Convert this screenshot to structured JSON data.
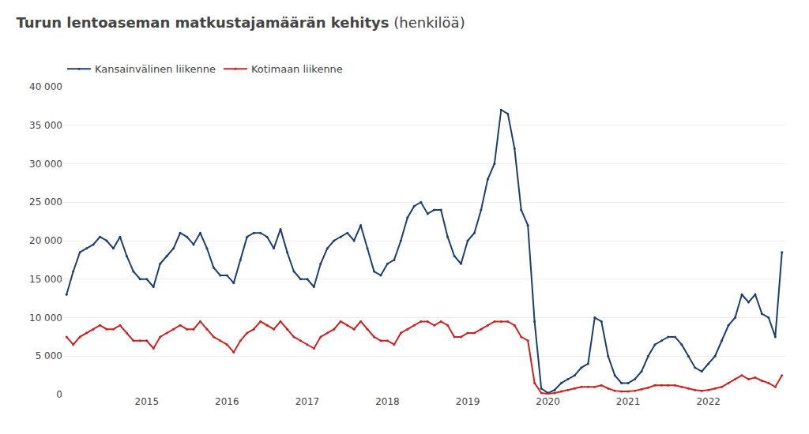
{
  "chart_data": {
    "type": "line",
    "title": "Turun lentoaseman matkustajamäärän kehitys",
    "subtitle": "(henkilöä)",
    "categories": [
      null,
      null,
      null,
      null,
      null,
      null,
      null,
      null,
      null,
      null,
      null,
      null,
      "2015",
      null,
      null,
      null,
      null,
      null,
      null,
      null,
      null,
      null,
      null,
      null,
      "2016",
      null,
      null,
      null,
      null,
      null,
      null,
      null,
      null,
      null,
      null,
      null,
      "2017",
      null,
      null,
      null,
      null,
      null,
      null,
      null,
      null,
      null,
      null,
      null,
      "2018",
      null,
      null,
      null,
      null,
      null,
      null,
      null,
      null,
      null,
      null,
      null,
      "2019",
      null,
      null,
      null,
      null,
      null,
      null,
      null,
      null,
      null,
      null,
      null,
      "2020",
      null,
      null,
      null,
      null,
      null,
      null,
      null,
      null,
      null,
      null,
      null,
      "2021",
      null,
      null,
      null,
      null,
      null,
      null,
      null,
      null,
      null,
      null,
      null,
      "2022",
      null,
      null,
      null,
      null,
      null,
      null,
      null,
      null,
      null,
      null,
      null
    ],
    "series": [
      {
        "name": "Kansainvälinen liikenne",
        "color": "#1c3f6e",
        "marker": "circle",
        "values": [
          13000,
          16000,
          18500,
          19000,
          19500,
          20500,
          20000,
          19000,
          20500,
          18000,
          16000,
          15000,
          15000,
          14000,
          17000,
          18000,
          19000,
          21000,
          20500,
          19500,
          21000,
          19000,
          16500,
          15500,
          15500,
          14500,
          17500,
          20500,
          21000,
          21000,
          20500,
          19000,
          21500,
          18500,
          16000,
          15000,
          15000,
          14000,
          17000,
          19000,
          20000,
          20500,
          21000,
          20000,
          22000,
          19000,
          16000,
          15500,
          17000,
          17500,
          20000,
          23000,
          24500,
          25000,
          23500,
          24000,
          24000,
          20500,
          18000,
          17000,
          20000,
          21000,
          24000,
          28000,
          30000,
          37000,
          36500,
          32000,
          24000,
          22000,
          9500,
          800,
          200,
          600,
          1500,
          2000,
          2500,
          3500,
          4000,
          10000,
          9500,
          5000,
          2500,
          1500,
          1500,
          2000,
          3000,
          5000,
          6500,
          7000,
          7500,
          7500,
          6500,
          5000,
          3500,
          3000,
          4000,
          5000,
          7000,
          9000,
          10000,
          13000,
          12000,
          13000,
          10500,
          10000,
          7500,
          18500
        ]
      },
      {
        "name": "Kotimaan liikenne",
        "color": "#cc2222",
        "marker": "circle",
        "values": [
          7500,
          6500,
          7500,
          8000,
          8500,
          9000,
          8500,
          8500,
          9000,
          8000,
          7000,
          7000,
          7000,
          6000,
          7500,
          8000,
          8500,
          9000,
          8500,
          8500,
          9500,
          8500,
          7500,
          7000,
          6500,
          5500,
          7000,
          8000,
          8500,
          9500,
          9000,
          8500,
          9500,
          8500,
          7500,
          7000,
          6500,
          6000,
          7500,
          8000,
          8500,
          9500,
          9000,
          8500,
          9500,
          8500,
          7500,
          7000,
          7000,
          6500,
          8000,
          8500,
          9000,
          9500,
          9500,
          9000,
          9500,
          9000,
          7500,
          7500,
          8000,
          8000,
          8500,
          9000,
          9500,
          9500,
          9500,
          9000,
          7500,
          7000,
          1500,
          200,
          100,
          200,
          400,
          600,
          800,
          1000,
          1000,
          1000,
          1200,
          800,
          500,
          400,
          400,
          500,
          700,
          900,
          1200,
          1200,
          1200,
          1200,
          1000,
          800,
          600,
          500,
          600,
          800,
          1000,
          1500,
          2000,
          2500,
          2000,
          2200,
          1800,
          1500,
          1000,
          2500
        ]
      }
    ],
    "ylim": [
      0,
      40000
    ],
    "yticks": [
      0,
      {
        "value": 5000,
        "label": "5 000"
      },
      {
        "value": 10000,
        "label": "10 000"
      },
      {
        "value": 15000,
        "label": "15 000"
      },
      {
        "value": 20000,
        "label": "20 000"
      },
      {
        "value": 25000,
        "label": "25 000"
      },
      {
        "value": 30000,
        "label": "30 000"
      },
      {
        "value": 35000,
        "label": "35 000"
      },
      {
        "value": 40000,
        "label": "40 000"
      }
    ],
    "grid": true,
    "legend": "top"
  }
}
